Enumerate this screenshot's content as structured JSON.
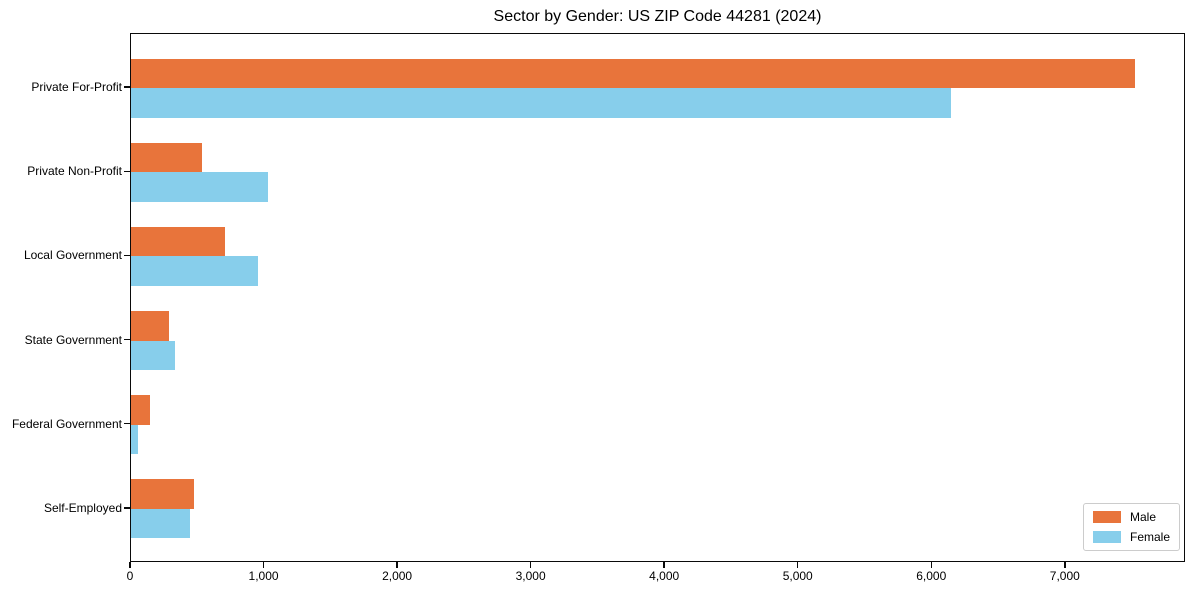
{
  "chart_data": {
    "type": "bar",
    "orientation": "horizontal",
    "title": "Sector by Gender: US ZIP Code 44281 (2024)",
    "categories": [
      "Private For-Profit",
      "Private Non-Profit",
      "Local Government",
      "State Government",
      "Federal Government",
      "Self-Employed"
    ],
    "series": [
      {
        "name": "Male",
        "color": "#E8743B",
        "values": [
          7535,
          530,
          705,
          285,
          140,
          475
        ]
      },
      {
        "name": "Female",
        "color": "#87CEEB",
        "values": [
          6150,
          1030,
          955,
          330,
          50,
          440
        ]
      }
    ],
    "xlabel": "",
    "ylabel": "",
    "xlim": [
      0,
      7900
    ],
    "x_ticks": [
      0,
      1000,
      2000,
      3000,
      4000,
      5000,
      6000,
      7000
    ],
    "x_tick_labels": [
      "0",
      "1,000",
      "2,000",
      "3,000",
      "4,000",
      "5,000",
      "6,000",
      "7,000"
    ],
    "grid": false,
    "legend_position": "lower right",
    "background_color": "#ffffff"
  }
}
